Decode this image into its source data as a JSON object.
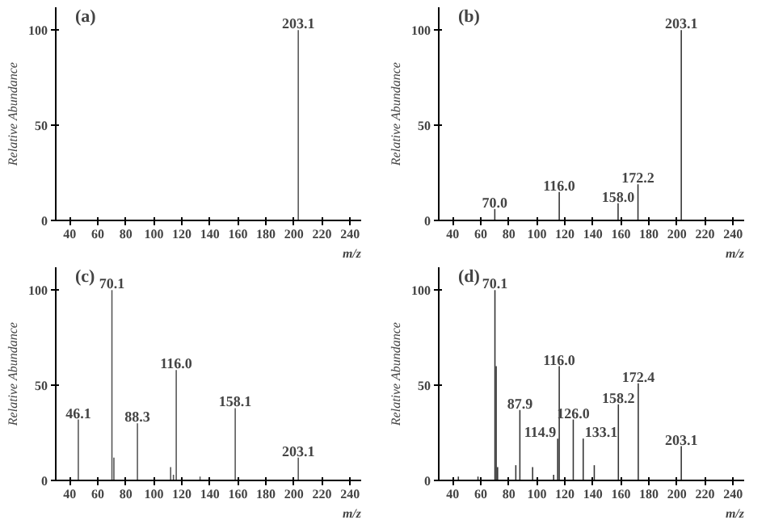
{
  "chart_data": [
    {
      "type": "bar",
      "title": "(a)",
      "xlabel": "m/z",
      "ylabel": "Relative Abundance",
      "color": "#555555",
      "x": [
        203.1
      ],
      "values": [
        100
      ],
      "xlim": [
        30,
        248
      ],
      "ylim": [
        0,
        112
      ],
      "xticks": [
        40,
        60,
        80,
        100,
        120,
        140,
        160,
        180,
        200,
        220,
        240
      ],
      "yticks": [
        0,
        50,
        100
      ],
      "annotations": [
        {
          "text": "203.1",
          "x": 203.1,
          "y": 100
        }
      ]
    },
    {
      "type": "bar",
      "title": "(b)",
      "xlabel": "m/z",
      "ylabel": "Relative Abundance",
      "color": "#333333",
      "x": [
        70.0,
        116.0,
        158.0,
        172.2,
        203.1
      ],
      "values": [
        6,
        15,
        9,
        19,
        100
      ],
      "xlim": [
        30,
        248
      ],
      "ylim": [
        0,
        112
      ],
      "xticks": [
        40,
        60,
        80,
        100,
        120,
        140,
        160,
        180,
        200,
        220,
        240
      ],
      "yticks": [
        0,
        50,
        100
      ],
      "annotations": [
        {
          "text": "70.0",
          "x": 70.0,
          "y": 6
        },
        {
          "text": "116.0",
          "x": 116.0,
          "y": 15
        },
        {
          "text": "158.0",
          "x": 158.0,
          "y": 9
        },
        {
          "text": "172.2",
          "x": 172.2,
          "y": 19
        },
        {
          "text": "203.1",
          "x": 203.1,
          "y": 100
        }
      ]
    },
    {
      "type": "bar",
      "title": "(c)",
      "xlabel": "m/z",
      "ylabel": "Relative Abundance",
      "color": "#555555",
      "x": [
        46.1,
        70.1,
        71.5,
        88.3,
        112,
        114,
        116.0,
        133,
        158.1,
        203.1
      ],
      "values": [
        32,
        100,
        12,
        30,
        7,
        3,
        58,
        2,
        38,
        12
      ],
      "xlim": [
        30,
        248
      ],
      "ylim": [
        0,
        112
      ],
      "xticks": [
        40,
        60,
        80,
        100,
        120,
        140,
        160,
        180,
        200,
        220,
        240
      ],
      "yticks": [
        0,
        50,
        100
      ],
      "annotations": [
        {
          "text": "46.1",
          "x": 46.1,
          "y": 32
        },
        {
          "text": "70.1",
          "x": 70.1,
          "y": 100
        },
        {
          "text": "88.3",
          "x": 88.3,
          "y": 30
        },
        {
          "text": "116.0",
          "x": 116.0,
          "y": 58
        },
        {
          "text": "158.1",
          "x": 158.1,
          "y": 38
        },
        {
          "text": "203.1",
          "x": 203.1,
          "y": 12
        }
      ]
    },
    {
      "type": "bar",
      "title": "(d)",
      "xlabel": "m/z",
      "ylabel": "Relative Abundance",
      "color": "#333333",
      "x": [
        44,
        58,
        70.1,
        71,
        72,
        85,
        87.9,
        97,
        112,
        114.9,
        116.0,
        126.0,
        133.1,
        141,
        158.2,
        172.4,
        203.1
      ],
      "values": [
        2,
        2,
        100,
        60,
        7,
        8,
        37,
        7,
        3,
        22,
        60,
        32,
        22,
        8,
        40,
        51,
        18
      ],
      "xlim": [
        30,
        248
      ],
      "ylim": [
        0,
        112
      ],
      "xticks": [
        40,
        60,
        80,
        100,
        120,
        140,
        160,
        180,
        200,
        220,
        240
      ],
      "yticks": [
        0,
        50,
        100
      ],
      "annotations": [
        {
          "text": "70.1",
          "x": 70.1,
          "y": 100
        },
        {
          "text": "87.9",
          "x": 87.9,
          "y": 37
        },
        {
          "text": "114.9",
          "x": 114.9,
          "y": 22
        },
        {
          "text": "116.0",
          "x": 116.0,
          "y": 60
        },
        {
          "text": "126.0",
          "x": 126.0,
          "y": 32
        },
        {
          "text": "133.1",
          "x": 133.1,
          "y": 22
        },
        {
          "text": "158.2",
          "x": 158.2,
          "y": 40
        },
        {
          "text": "172.4",
          "x": 172.4,
          "y": 51
        },
        {
          "text": "203.1",
          "x": 203.1,
          "y": 18
        }
      ]
    }
  ]
}
